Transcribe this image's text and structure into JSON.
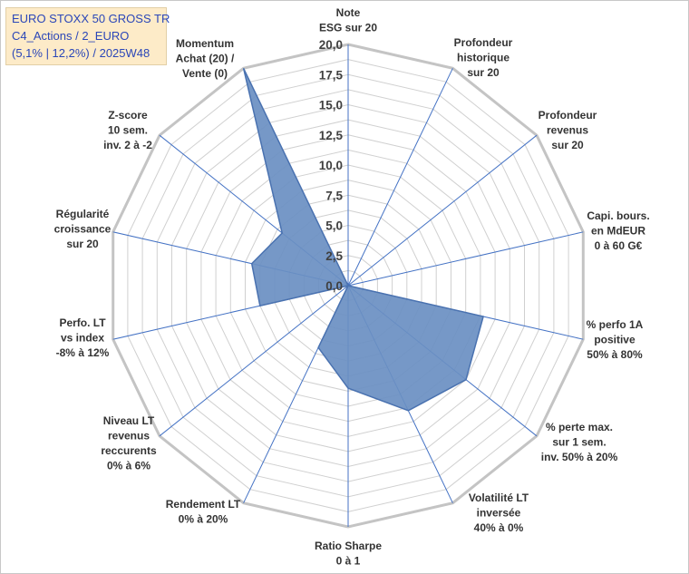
{
  "header": {
    "lines": [
      "EURO STOXX 50 GROSS TR",
      "C4_Actions / 2_EURO",
      "(5,1% | 12,2%) / 2025W48"
    ]
  },
  "colors": {
    "fill": "#6a8fc2",
    "stroke": "#4a72b0",
    "grid": "#d0d0d0",
    "spoke": "#4472c4",
    "title_bg": "#fdebc8",
    "title_text": "#2a46b8"
  },
  "chart_data": {
    "type": "radar",
    "title": "EURO STOXX 50 GROSS TR",
    "rlim": [
      0,
      20
    ],
    "rticks": [
      "0,0",
      "2,5",
      "5,0",
      "7,5",
      "10,0",
      "12,5",
      "15,0",
      "17,5",
      "20,0"
    ],
    "categories": [
      [
        "Note",
        "ESG sur 20"
      ],
      [
        "Profondeur",
        "historique",
        "sur 20"
      ],
      [
        "Profondeur",
        "revenus",
        "sur 20"
      ],
      [
        "Capi. bours.",
        "en MdEUR",
        "0 à 60 G€"
      ],
      [
        "% perfo 1A",
        "positive",
        "50% à 80%"
      ],
      [
        "% perte max.",
        "sur 1 sem.",
        "inv. 50% à 20%"
      ],
      [
        "Volatilité LT",
        "inversée",
        "40% à 0%"
      ],
      [
        "Ratio Sharpe",
        "0 à 1"
      ],
      [
        "Rendement LT",
        "0% à 20%"
      ],
      [
        "Niveau LT",
        "revenus",
        "reccurents",
        "0% à 6%"
      ],
      [
        "Perfo. LT",
        "vs index",
        "-8% à 12%"
      ],
      [
        "Régularité",
        "croissance",
        "sur 20"
      ],
      [
        "Z-score",
        "10 sem.",
        "inv. 2 à -2"
      ],
      [
        "Momentum",
        "Achat (20) /",
        "Vente (0)"
      ]
    ],
    "series": [
      {
        "name": "EURO STOXX 50 GROSS TR",
        "values": [
          0,
          0,
          0,
          0,
          11.5,
          12.5,
          11.5,
          8.5,
          5.7,
          0,
          7.5,
          8.2,
          7.0,
          20.0
        ]
      }
    ],
    "grid": true
  }
}
